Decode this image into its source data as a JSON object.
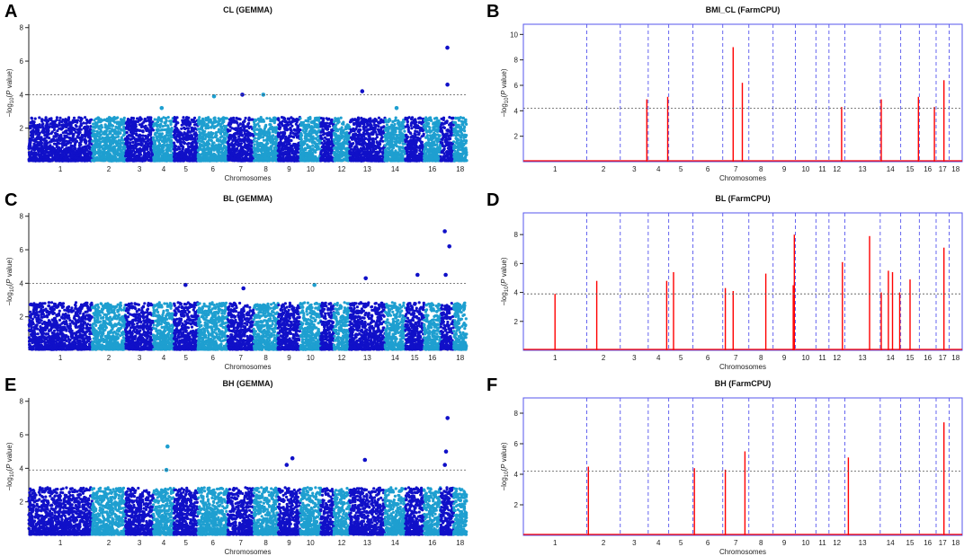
{
  "figure": {
    "colors": {
      "dark_blue": "#1010c8",
      "light_blue": "#1e9fd0",
      "red": "#ff0000",
      "chrom_line": "#5555ee",
      "threshold": "#555555",
      "axis": "#222222"
    }
  },
  "chart_data": [
    {
      "panel_letter": "A",
      "title": "CL (GEMMA)",
      "type": "scatter",
      "method": "GEMMA",
      "xlabel": "Chromosomes",
      "ylabel_prefix": "−log",
      "ylabel_sub": "10",
      "ylabel_p": "P",
      "ylabel_suffix": " value)",
      "ylim": [
        0,
        8.2
      ],
      "yticks": [
        2,
        4,
        6,
        8
      ],
      "threshold": 4.0,
      "chromosomes": [
        "1",
        "2",
        "3",
        "4",
        "5",
        "6",
        "7",
        "8",
        "9",
        "10",
        "11",
        "12",
        "13",
        "14",
        "15",
        "16",
        "17",
        "18"
      ],
      "x_tick_labels": [
        "1",
        "2",
        "3",
        "4",
        "5",
        "6",
        "7",
        "8",
        "9",
        "10",
        "12",
        "13",
        "14",
        "16",
        "18"
      ],
      "noise_max": 2.6,
      "top_hits": [
        {
          "chr": "6",
          "y": 3.9
        },
        {
          "chr": "7",
          "y": 4.0
        },
        {
          "chr": "8",
          "y": 4.0
        },
        {
          "chr": "13",
          "y": 4.2
        },
        {
          "chr": "17",
          "y": 4.6
        },
        {
          "chr": "17",
          "y": 6.8
        },
        {
          "chr": "4",
          "y": 3.2
        },
        {
          "chr": "14",
          "y": 3.2
        }
      ]
    },
    {
      "panel_letter": "B",
      "title": "BMI_CL (FarmCPU)",
      "type": "bar",
      "method": "FarmCPU",
      "xlabel": "Chromosomes",
      "ylabel_prefix": "−log",
      "ylabel_sub": "10",
      "ylabel_p": "P",
      "ylabel_suffix": " value)",
      "ylim": [
        0,
        10.8
      ],
      "yticks": [
        2,
        4,
        6,
        8,
        10
      ],
      "threshold": 4.2,
      "chromosomes": [
        "1",
        "2",
        "3",
        "4",
        "5",
        "6",
        "7",
        "8",
        "9",
        "10",
        "11",
        "12",
        "13",
        "14",
        "15",
        "16",
        "17",
        "18"
      ],
      "x_tick_labels": [
        "1",
        "2",
        "3",
        "4",
        "5",
        "6",
        "7",
        "8",
        "9",
        "10",
        "11",
        "12",
        "13",
        "14",
        "15",
        "16",
        "17",
        "18"
      ],
      "hits": [
        {
          "chr": "3",
          "pos": 0.95,
          "y": 4.9
        },
        {
          "chr": "4",
          "pos": 0.95,
          "y": 5.1
        },
        {
          "chr": "7",
          "pos": 0.4,
          "y": 9.0
        },
        {
          "chr": "7",
          "pos": 0.75,
          "y": 6.2
        },
        {
          "chr": "12",
          "pos": 0.8,
          "y": 4.3
        },
        {
          "chr": "14",
          "pos": 0.05,
          "y": 4.9
        },
        {
          "chr": "15",
          "pos": 0.95,
          "y": 5.1
        },
        {
          "chr": "16",
          "pos": 0.9,
          "y": 4.3
        },
        {
          "chr": "17",
          "pos": 0.6,
          "y": 6.4
        }
      ]
    },
    {
      "panel_letter": "C",
      "title": "BL (GEMMA)",
      "type": "scatter",
      "method": "GEMMA",
      "xlabel": "Chromosomes",
      "ylabel_prefix": "−log",
      "ylabel_sub": "10",
      "ylabel_p": "P",
      "ylabel_suffix": " value)",
      "ylim": [
        0,
        8.2
      ],
      "yticks": [
        2,
        4,
        6,
        8
      ],
      "threshold": 4.0,
      "chromosomes": [
        "1",
        "2",
        "3",
        "4",
        "5",
        "6",
        "7",
        "8",
        "9",
        "10",
        "11",
        "12",
        "13",
        "14",
        "15",
        "16",
        "17",
        "18"
      ],
      "x_tick_labels": [
        "1",
        "2",
        "3",
        "4",
        "5",
        "6",
        "7",
        "8",
        "9",
        "10",
        "12",
        "13",
        "14",
        "15",
        "16",
        "18"
      ],
      "noise_max": 2.8,
      "top_hits": [
        {
          "chr": "5",
          "y": 3.9
        },
        {
          "chr": "7",
          "y": 3.7
        },
        {
          "chr": "10",
          "y": 3.9
        },
        {
          "chr": "13",
          "y": 4.3
        },
        {
          "chr": "15",
          "y": 4.5
        },
        {
          "chr": "17",
          "y": 7.1
        },
        {
          "chr": "17",
          "y": 6.2
        },
        {
          "chr": "17",
          "y": 4.5
        }
      ]
    },
    {
      "panel_letter": "D",
      "title": "BL (FarmCPU)",
      "type": "bar",
      "method": "FarmCPU",
      "xlabel": "Chromosomes",
      "ylabel_prefix": "−log",
      "ylabel_sub": "10",
      "ylabel_p": "P",
      "ylabel_suffix": " value)",
      "ylim": [
        0,
        9.5
      ],
      "yticks": [
        2,
        4,
        6,
        8
      ],
      "threshold": 3.9,
      "chromosomes": [
        "1",
        "2",
        "3",
        "4",
        "5",
        "6",
        "7",
        "8",
        "9",
        "10",
        "11",
        "12",
        "13",
        "14",
        "15",
        "16",
        "17",
        "18"
      ],
      "x_tick_labels": [
        "1",
        "2",
        "3",
        "4",
        "5",
        "6",
        "7",
        "8",
        "9",
        "10",
        "11",
        "12",
        "13",
        "14",
        "15",
        "16",
        "17",
        "18"
      ],
      "hits": [
        {
          "chr": "1",
          "pos": 0.5,
          "y": 3.9
        },
        {
          "chr": "2",
          "pos": 0.3,
          "y": 4.8
        },
        {
          "chr": "4",
          "pos": 0.9,
          "y": 4.8
        },
        {
          "chr": "5",
          "pos": 0.2,
          "y": 5.4
        },
        {
          "chr": "7",
          "pos": 0.1,
          "y": 4.3
        },
        {
          "chr": "7",
          "pos": 0.4,
          "y": 4.1
        },
        {
          "chr": "8",
          "pos": 0.7,
          "y": 5.3
        },
        {
          "chr": "9",
          "pos": 0.95,
          "y": 8.0
        },
        {
          "chr": "9",
          "pos": 0.9,
          "y": 4.5
        },
        {
          "chr": "12",
          "pos": 0.85,
          "y": 6.1
        },
        {
          "chr": "13",
          "pos": 0.7,
          "y": 7.9
        },
        {
          "chr": "14",
          "pos": 0.05,
          "y": 4.0
        },
        {
          "chr": "14",
          "pos": 0.4,
          "y": 5.5
        },
        {
          "chr": "14",
          "pos": 0.6,
          "y": 5.4
        },
        {
          "chr": "14",
          "pos": 0.95,
          "y": 4.0
        },
        {
          "chr": "15",
          "pos": 0.5,
          "y": 4.9
        },
        {
          "chr": "17",
          "pos": 0.6,
          "y": 7.1
        }
      ]
    },
    {
      "panel_letter": "E",
      "title": "BH (GEMMA)",
      "type": "scatter",
      "method": "GEMMA",
      "xlabel": "Chromosomes",
      "ylabel_prefix": "−log",
      "ylabel_sub": "10",
      "ylabel_p": "P",
      "ylabel_suffix": " value)",
      "ylim": [
        0,
        8.2
      ],
      "yticks": [
        2,
        4,
        6,
        8
      ],
      "threshold": 3.9,
      "chromosomes": [
        "1",
        "2",
        "3",
        "4",
        "5",
        "6",
        "7",
        "8",
        "9",
        "10",
        "11",
        "12",
        "13",
        "14",
        "15",
        "16",
        "17",
        "18"
      ],
      "x_tick_labels": [
        "1",
        "2",
        "3",
        "4",
        "5",
        "6",
        "7",
        "8",
        "9",
        "10",
        "12",
        "13",
        "14",
        "16",
        "18"
      ],
      "noise_max": 2.8,
      "top_hits": [
        {
          "chr": "4",
          "y": 5.3
        },
        {
          "chr": "4",
          "y": 3.9
        },
        {
          "chr": "9",
          "y": 4.6
        },
        {
          "chr": "9",
          "y": 4.2
        },
        {
          "chr": "13",
          "y": 4.5
        },
        {
          "chr": "17",
          "y": 7.0
        },
        {
          "chr": "17",
          "y": 5.0
        },
        {
          "chr": "17",
          "y": 4.2
        }
      ]
    },
    {
      "panel_letter": "F",
      "title": "BH (FarmCPU)",
      "type": "bar",
      "method": "FarmCPU",
      "xlabel": "Chromosomes",
      "ylabel_prefix": "−log",
      "ylabel_sub": "10",
      "ylabel_p": "P",
      "ylabel_suffix": " value)",
      "ylim": [
        0,
        9.0
      ],
      "yticks": [
        2,
        4,
        6,
        8
      ],
      "threshold": 4.2,
      "chromosomes": [
        "1",
        "2",
        "3",
        "4",
        "5",
        "6",
        "7",
        "8",
        "9",
        "10",
        "11",
        "12",
        "13",
        "14",
        "15",
        "16",
        "17",
        "18"
      ],
      "x_tick_labels": [
        "1",
        "2",
        "3",
        "4",
        "5",
        "6",
        "7",
        "8",
        "9",
        "10",
        "11",
        "12",
        "13",
        "14",
        "15",
        "16",
        "17",
        "18"
      ],
      "hits": [
        {
          "chr": "2",
          "pos": 0.05,
          "y": 4.5
        },
        {
          "chr": "6",
          "pos": 0.05,
          "y": 4.4
        },
        {
          "chr": "7",
          "pos": 0.1,
          "y": 4.3
        },
        {
          "chr": "7",
          "pos": 0.85,
          "y": 5.5
        },
        {
          "chr": "13",
          "pos": 0.1,
          "y": 5.1
        },
        {
          "chr": "17",
          "pos": 0.6,
          "y": 7.4
        }
      ]
    }
  ]
}
